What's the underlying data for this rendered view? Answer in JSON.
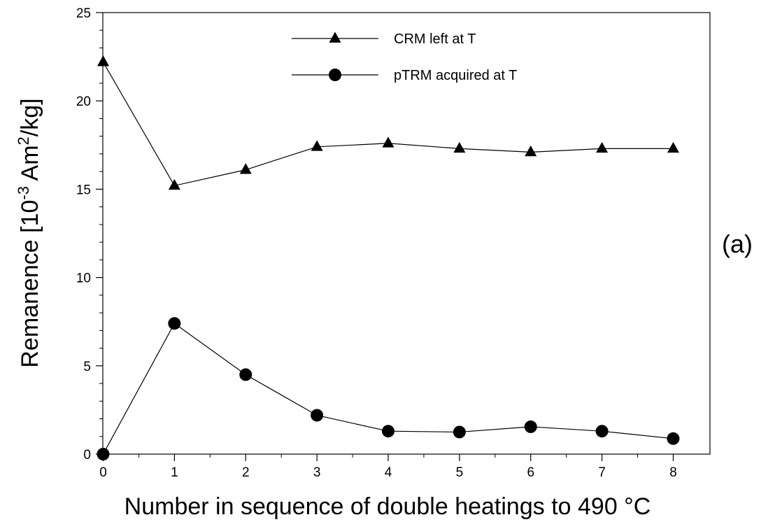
{
  "chart_data": {
    "type": "line",
    "xlabel": "Number in sequence of double heatings to 490 °C",
    "ylabel": {
      "prefix": "Remanence [10",
      "exp1": "-3",
      "middle": " Am",
      "exp2": "2",
      "suffix": "/kg]"
    },
    "xlim": [
      0,
      8
    ],
    "ylim": [
      0,
      25
    ],
    "x_ticks": [
      "0",
      "1",
      "2",
      "3",
      "4",
      "5",
      "6",
      "7",
      "8"
    ],
    "y_ticks": [
      "0",
      "5",
      "10",
      "15",
      "20",
      "25"
    ],
    "grid": false,
    "legend_position": "top-center",
    "panel_label": "(a)",
    "series": [
      {
        "name": "CRM left at T",
        "marker": "triangle",
        "x": [
          0,
          1,
          2,
          3,
          4,
          5,
          6,
          7,
          8
        ],
        "values": [
          22.2,
          15.2,
          16.1,
          17.4,
          17.6,
          17.3,
          17.1,
          17.3,
          17.3
        ]
      },
      {
        "name": "pTRM acquired at T",
        "marker": "circle",
        "x": [
          0,
          1,
          2,
          3,
          4,
          5,
          6,
          7,
          8
        ],
        "values": [
          0.0,
          7.4,
          4.5,
          2.2,
          1.3,
          1.25,
          1.55,
          1.3,
          0.88
        ]
      }
    ]
  }
}
